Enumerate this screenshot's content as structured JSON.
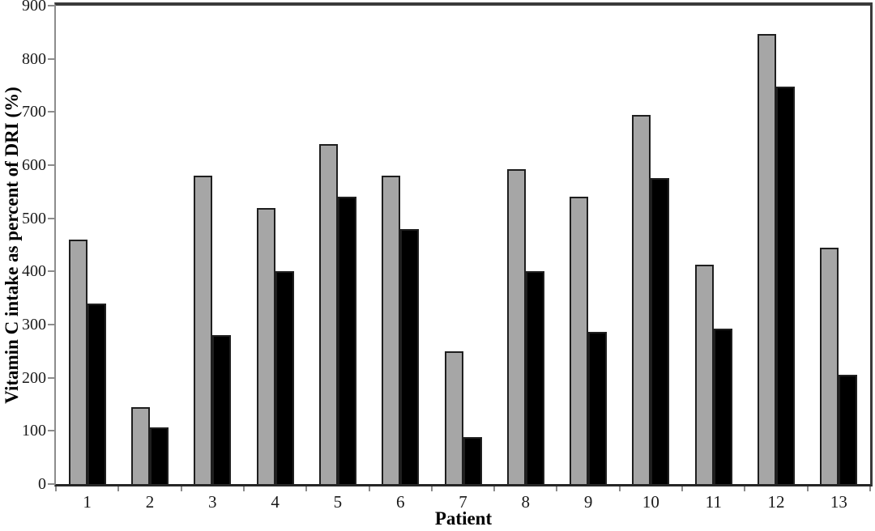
{
  "figure": {
    "background": "#ffffff"
  },
  "chart_data": {
    "type": "bar",
    "title": "",
    "xlabel": "Patient",
    "ylabel": "Vitamin C intake as percent of DRI (%)",
    "categories": [
      "1",
      "2",
      "3",
      "4",
      "5",
      "6",
      "7",
      "8",
      "9",
      "10",
      "11",
      "12",
      "13"
    ],
    "series": [
      {
        "name": "gray-series",
        "color": "#a6a6a6",
        "values": [
          460,
          145,
          580,
          520,
          640,
          580,
          250,
          593,
          540,
          695,
          412,
          847,
          445
        ]
      },
      {
        "name": "black-series",
        "color": "#000000",
        "values": [
          340,
          107,
          280,
          400,
          540,
          480,
          88,
          400,
          287,
          576,
          292,
          748,
          205
        ]
      }
    ],
    "ylim": [
      0,
      900
    ],
    "y_ticks": [
      0,
      100,
      200,
      300,
      400,
      500,
      600,
      700,
      800,
      900
    ],
    "grid": false,
    "legend": "none",
    "colors": {
      "bar_border": "#1f1f1f",
      "axis": "#8c8c8c",
      "frame": "#3a3a3a",
      "x_axis_line": "#262626",
      "tick_text": "#1a1a1a"
    }
  }
}
